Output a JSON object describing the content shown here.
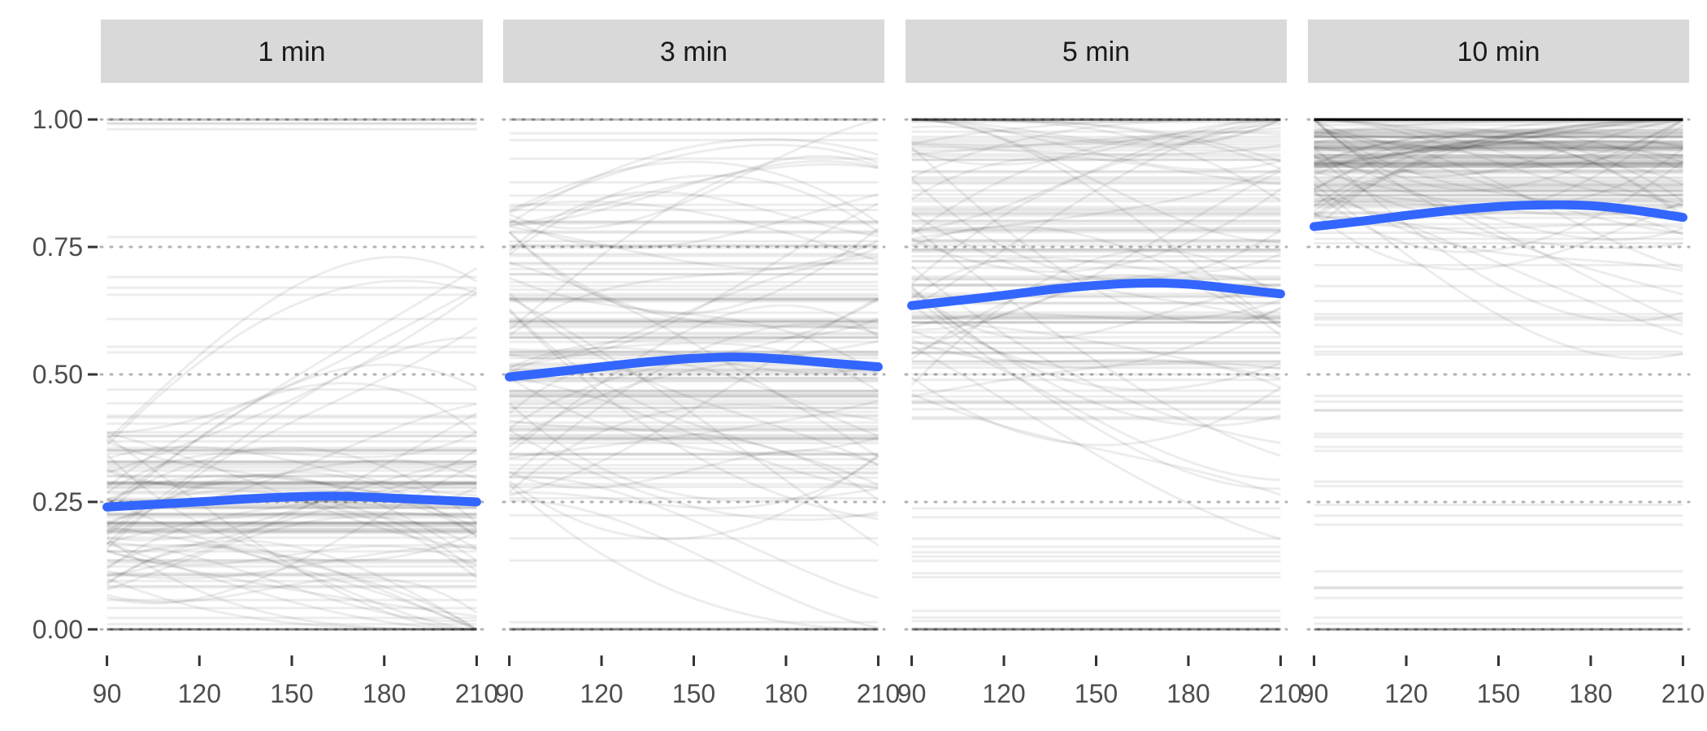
{
  "chart_data": {
    "type": "line",
    "facet_by": "time",
    "facets": [
      {
        "label": "1 min",
        "mean": {
          "x": [
            90,
            105,
            120,
            135,
            150,
            165,
            180,
            195,
            210
          ],
          "y": [
            0.24,
            0.245,
            0.25,
            0.256,
            0.26,
            0.262,
            0.258,
            0.254,
            0.25
          ]
        },
        "hline_density": "low",
        "hline_center": 0.22,
        "hline_spread": 0.12
      },
      {
        "label": "3 min",
        "mean": {
          "x": [
            90,
            105,
            120,
            135,
            150,
            165,
            180,
            195,
            210
          ],
          "y": [
            0.495,
            0.505,
            0.515,
            0.525,
            0.532,
            0.535,
            0.53,
            0.522,
            0.515
          ]
        },
        "hline_density": "mid",
        "hline_center": 0.55,
        "hline_spread": 0.2
      },
      {
        "label": "5 min",
        "mean": {
          "x": [
            90,
            105,
            120,
            135,
            150,
            165,
            180,
            195,
            210
          ],
          "y": [
            0.635,
            0.645,
            0.655,
            0.667,
            0.675,
            0.68,
            0.678,
            0.668,
            0.658
          ]
        },
        "hline_density": "mid",
        "hline_center": 0.75,
        "hline_spread": 0.2
      },
      {
        "label": "10 min",
        "mean": {
          "x": [
            90,
            105,
            120,
            135,
            150,
            165,
            180,
            195,
            210
          ],
          "y": [
            0.79,
            0.8,
            0.812,
            0.822,
            0.83,
            0.833,
            0.832,
            0.822,
            0.808
          ]
        },
        "hline_density": "high",
        "hline_center": 0.93,
        "hline_spread": 0.1
      }
    ],
    "x_ticks": [
      90,
      120,
      150,
      180,
      210
    ],
    "y_ticks": [
      0.0,
      0.25,
      0.5,
      0.75,
      1.0
    ],
    "y_tick_labels": [
      "0.00",
      "0.25",
      "0.50",
      "0.75",
      "1.00"
    ],
    "xlim": [
      88,
      212
    ],
    "ylim": [
      -0.04,
      1.04
    ],
    "grid": "dotted-horizontal",
    "mean_color": "#3366ff",
    "individual_color": "#000000",
    "strip_color": "#d9d9d9",
    "xlabel": "",
    "ylabel": "",
    "title": ""
  }
}
